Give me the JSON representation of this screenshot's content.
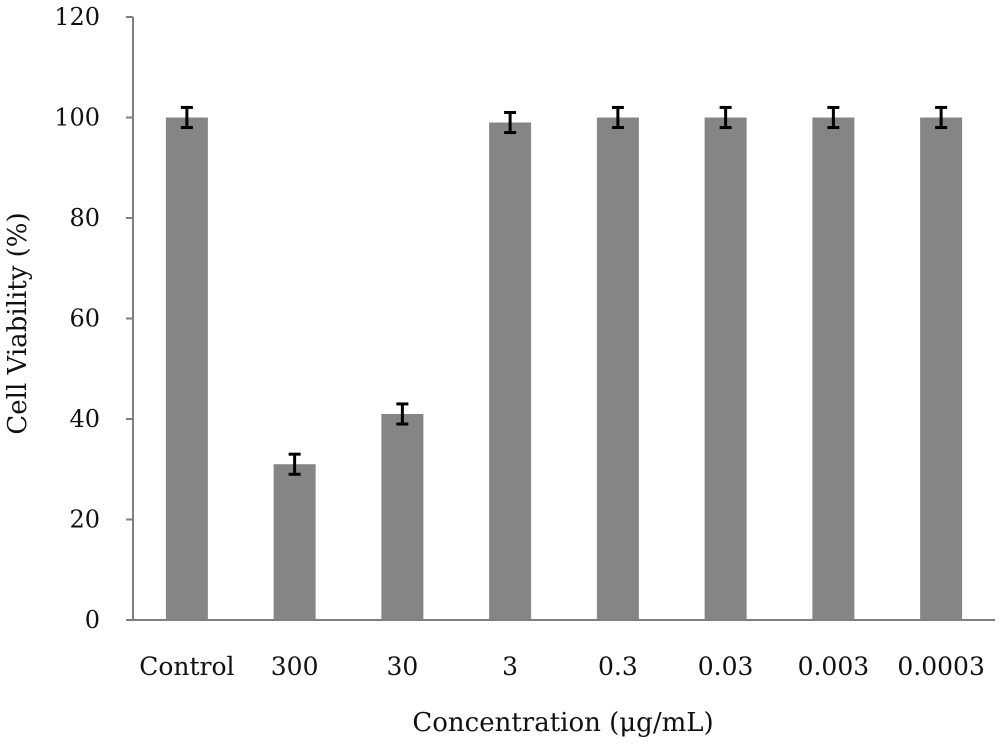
{
  "chart_data": {
    "type": "bar",
    "categories": [
      "Control",
      "300",
      "30",
      "3",
      "0.3",
      "0.03",
      "0.003",
      "0.0003"
    ],
    "values": [
      100,
      31,
      41,
      99,
      100,
      100,
      100,
      100
    ],
    "error": [
      2,
      2,
      2,
      2,
      2,
      2,
      2,
      2
    ],
    "xlabel": "Concentration (μg/mL)",
    "ylabel": "Cell Viability (%)",
    "ylim": [
      0,
      120
    ],
    "yticks": [
      0,
      20,
      40,
      60,
      80,
      100,
      120
    ],
    "grid": false,
    "legend": "none",
    "colors": {
      "bar": "#858585",
      "axis": "#7f7f7f",
      "error_bar": "#000000"
    }
  }
}
